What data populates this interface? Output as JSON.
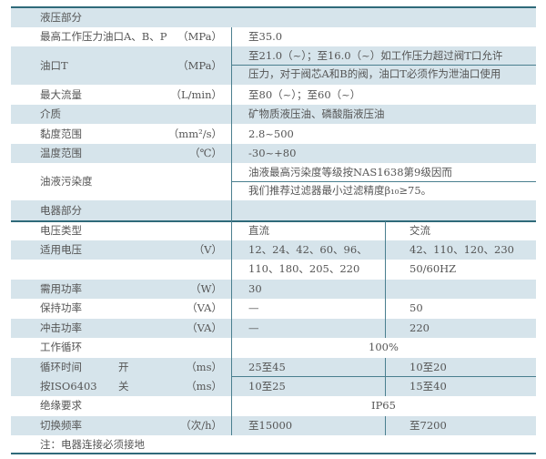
{
  "hydraulic": {
    "section_title": "液压部分",
    "rows": [
      {
        "label": "最高工作压力油口A、B、P",
        "unit": "（MPa）",
        "values": [
          "至35.0"
        ]
      },
      {
        "label": "油口T",
        "unit": "（MPa）",
        "values": [
          "至21.0（~）；至16.0（~）如工作压力超过阀T口允许",
          "压力，对于阀芯A和B的阀，油口T必须作为泄油口使用"
        ]
      },
      {
        "label": "最大流量",
        "unit": "（L/min）",
        "values": [
          "至80（~）；至60（~）"
        ]
      },
      {
        "label": "介质",
        "unit": "",
        "values": [
          "矿物质液压油、磷酸脂液压油"
        ]
      },
      {
        "label": "黏度范围",
        "unit": "（mm²/s）",
        "values": [
          "2.8~500"
        ]
      },
      {
        "label": "温度范围",
        "unit": "（℃）",
        "values": [
          "-30~+80"
        ]
      },
      {
        "label": "油液污染度",
        "unit": "",
        "values": [
          "油液最高污染度等级按NAS1638第9级因而",
          "我们推荐过滤器最小过滤精度β₁₀≥75。"
        ]
      }
    ]
  },
  "electrical": {
    "section_title": "电器部分",
    "rows": [
      {
        "label": "电压类型",
        "unit": "",
        "dc": "直流",
        "ac": "交流"
      },
      {
        "label": "适用电压",
        "unit": "（V）",
        "dc": "12、24、42、60、96、",
        "ac": "42、110、120、230"
      },
      {
        "label": "",
        "unit": "",
        "dc": "110、180、205、220",
        "ac": "50/60HZ"
      },
      {
        "label": "需用功率",
        "unit": "（W）",
        "dc": "30",
        "ac": ""
      },
      {
        "label": "保持功率",
        "unit": "（VA）",
        "dc": "—",
        "ac": "50"
      },
      {
        "label": "冲击功率",
        "unit": "（VA）",
        "dc": "—",
        "ac": "220"
      },
      {
        "label": "工作循环",
        "unit": "",
        "span": "100%"
      },
      {
        "label": "循环时间",
        "sub": "开",
        "unit": "（ms）",
        "dc": "25至45",
        "ac": "10至20"
      },
      {
        "label": "按ISO6403",
        "sub": "关",
        "unit": "（ms）",
        "dc": "10至25",
        "ac": "15至40"
      },
      {
        "label": "绝缘要求",
        "unit": "",
        "span": "IP65"
      },
      {
        "label": "切换频率",
        "unit": "（次/h）",
        "dc": "至15000",
        "ac": "至7200"
      }
    ],
    "note": "注：电器连接必须接地"
  },
  "colors": {
    "shade": "#d6e4eb",
    "rule": "#2f6a7a",
    "text": "#555555"
  }
}
